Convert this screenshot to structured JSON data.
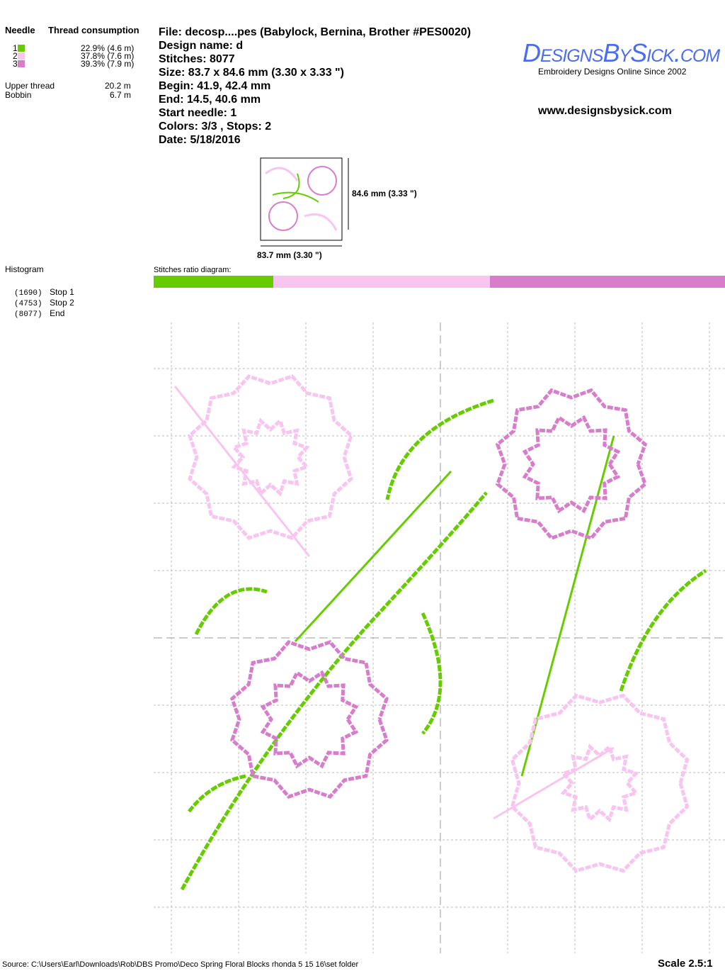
{
  "consumption": {
    "needle_header": "Needle",
    "thread_header": "Thread consumption",
    "needles": [
      {
        "num": "1",
        "color": "#66cc00",
        "value": "22.9% (4.6 m)"
      },
      {
        "num": "2",
        "color": "#f8c4f0",
        "value": "37.8% (7.6 m)"
      },
      {
        "num": "3",
        "color": "#d87ccc",
        "value": "39.3% (7.9 m)"
      }
    ],
    "upper_label": "Upper thread",
    "upper_value": "20.2 m",
    "bobbin_label": "Bobbin",
    "bobbin_value": "6.7 m"
  },
  "info": {
    "file": "File: decosp....pes  (Babylock, Bernina, Brother #PES0020)",
    "design_name": "Design name: d",
    "stitches": "Stitches: 8077",
    "size": "Size: 83.7 x 84.6 mm (3.30 x 3.33 \")",
    "begin": "Begin: 41.9, 42.4 mm",
    "end": "End: 14.5, 40.6 mm",
    "start_needle": "Start needle: 1",
    "colors": "Colors: 3/3 , Stops: 2",
    "date": "Date: 5/18/2016"
  },
  "logo": {
    "text": "DesignsBySick.com",
    "tagline": "Embroidery Designs Online Since 2002",
    "url": "www.designsbysick.com",
    "color": "#4a6cf0"
  },
  "thumbnail": {
    "height_label": "84.6 mm (3.33 \")",
    "width_label": "83.7 mm (3.30 \")"
  },
  "histogram": {
    "title": "Histogram",
    "stops": [
      {
        "count": "(1690)",
        "label": "Stop 1"
      },
      {
        "count": "(4753)",
        "label": "Stop 2"
      },
      {
        "count": "(8077)",
        "label": "End"
      }
    ]
  },
  "ratio": {
    "label": "Stitches ratio diagram:",
    "segments": [
      {
        "color": "#66cc00",
        "fraction": 0.209
      },
      {
        "color": "#f8c4f0",
        "fraction": 0.379
      },
      {
        "color": "#d87ccc",
        "fraction": 0.412
      }
    ]
  },
  "footer": {
    "source": "Source: C:\\Users\\Earl\\Downloads\\Rob\\DBS Promo\\Deco Spring Floral Blocks rhonda 5 15 16\\set folder",
    "scale": "Scale 2.5:1"
  }
}
